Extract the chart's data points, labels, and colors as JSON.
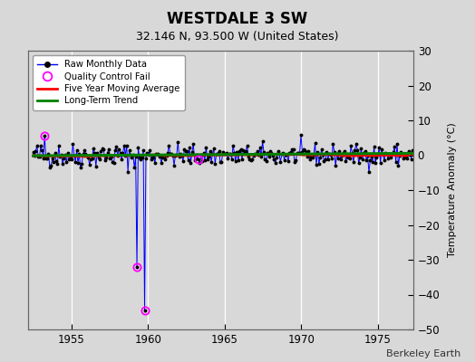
{
  "title": "WESTDALE 3 SW",
  "subtitle": "32.146 N, 93.500 W (United States)",
  "ylabel": "Temperature Anomaly (°C)",
  "credit": "Berkeley Earth",
  "xlim": [
    1952.2,
    1977.3
  ],
  "ylim": [
    -50,
    30
  ],
  "yticks": [
    -50,
    -40,
    -30,
    -20,
    -10,
    0,
    10,
    20,
    30
  ],
  "xticks": [
    1955,
    1960,
    1965,
    1970,
    1975
  ],
  "bg_color": "#d8d8d8",
  "plot_bg_color": "#d8d8d8",
  "grid_color": "white",
  "raw_line_color": "blue",
  "raw_dot_color": "black",
  "qc_fail_color": "magenta",
  "moving_avg_color": "red",
  "trend_color": "green",
  "seed": 42,
  "n_months": 300,
  "start_year": 1952.5,
  "qc_fail_points": [
    {
      "year": 1953.25,
      "value": 5.5
    },
    {
      "year": 1959.25,
      "value": -32.0
    },
    {
      "year": 1959.75,
      "value": -44.5
    },
    {
      "year": 1963.25,
      "value": -1.2
    }
  ],
  "outlier_years": [
    1959.25,
    1959.75
  ]
}
